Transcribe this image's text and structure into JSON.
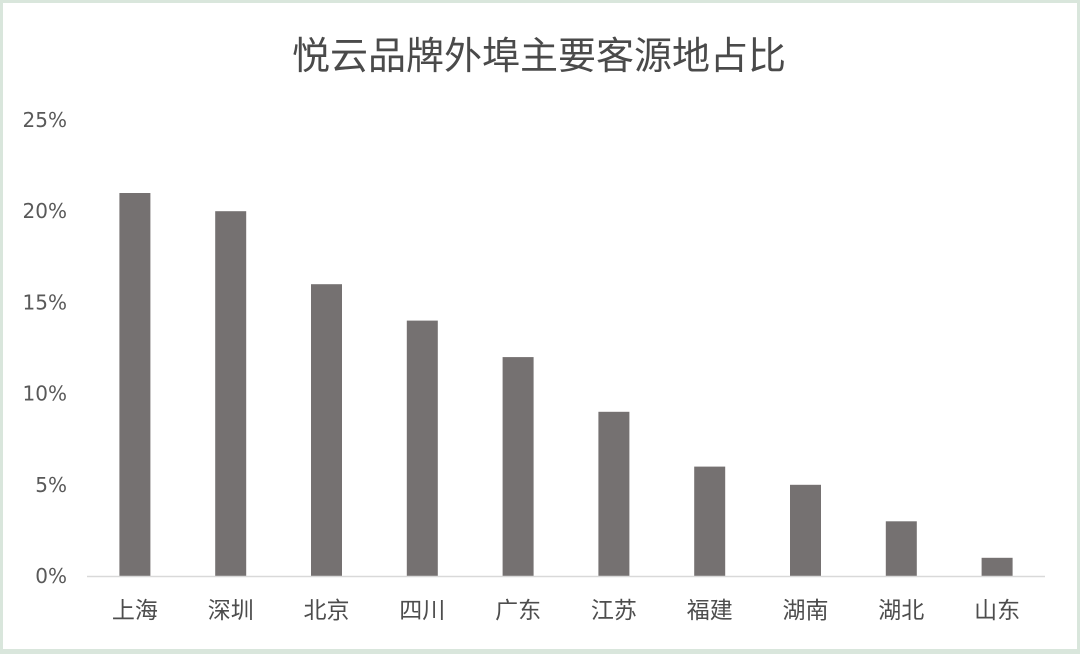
{
  "chart_data": {
    "type": "bar",
    "title": "悦云品牌外埠主要客源地占比",
    "xlabel": "",
    "ylabel": "",
    "categories": [
      "上海",
      "深圳",
      "北京",
      "四川",
      "广东",
      "江苏",
      "福建",
      "湖南",
      "湖北",
      "山东"
    ],
    "values": [
      21,
      20,
      16,
      14,
      12,
      9,
      6,
      5,
      3,
      1
    ],
    "value_unit": "%",
    "ylim": [
      0,
      25
    ],
    "yticks": [
      "0%",
      "5%",
      "10%",
      "15%",
      "20%",
      "25%"
    ],
    "grid": false,
    "legend": "none",
    "colors": {
      "bar": "#757171",
      "axis": "#d9d9d9"
    }
  }
}
